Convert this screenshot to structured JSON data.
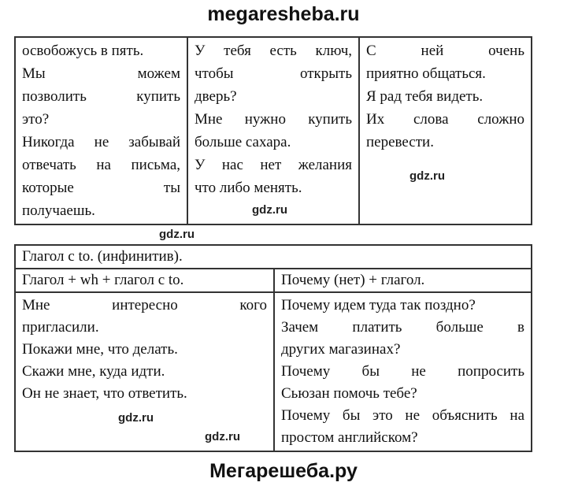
{
  "header": {
    "site": "megaresheba.ru"
  },
  "footer": {
    "site": "Мегарешеба.ру"
  },
  "watermark": "gdz.ru",
  "table1": {
    "cells": [
      [
        [
          "освобожусь в пять."
        ],
        [
          "Мы можем",
          "позволить купить",
          "это?"
        ],
        [
          "Никогда не забывай",
          "отвечать на письма,",
          "которые ты",
          "получаешь."
        ]
      ],
      [
        [
          "У тебя есть ключ,",
          "чтобы открыть",
          "дверь?"
        ],
        [
          "Мне нужно купить",
          "больше сахара."
        ],
        [
          "У нас нет желания",
          "что либо менять."
        ]
      ],
      [
        [
          "С ней очень",
          "приятно общаться."
        ],
        [
          "Я рад тебя видеть."
        ],
        [
          "Их слова сложно",
          "перевести."
        ]
      ]
    ]
  },
  "table2": {
    "title": "Глагол с to. (инфинитив).",
    "headers": [
      "Глагол + wh + глагол с to.",
      "Почему (нет) + глагол."
    ],
    "cells": [
      [
        [
          "Мне интересно кого",
          "пригласили."
        ],
        [
          "Покажи мне, что делать."
        ],
        [
          "Скажи мне, куда идти."
        ],
        [
          "Он не знает, что ответить."
        ]
      ],
      [
        [
          "Почему идем туда так поздно?"
        ],
        [
          "Зачем платить больше в",
          "других магазинах?"
        ],
        [
          "Почему бы не попросить",
          "Сьюзан помочь тебе?"
        ],
        [
          "Почему бы это не объяснить на",
          "простом английском?"
        ]
      ]
    ]
  }
}
